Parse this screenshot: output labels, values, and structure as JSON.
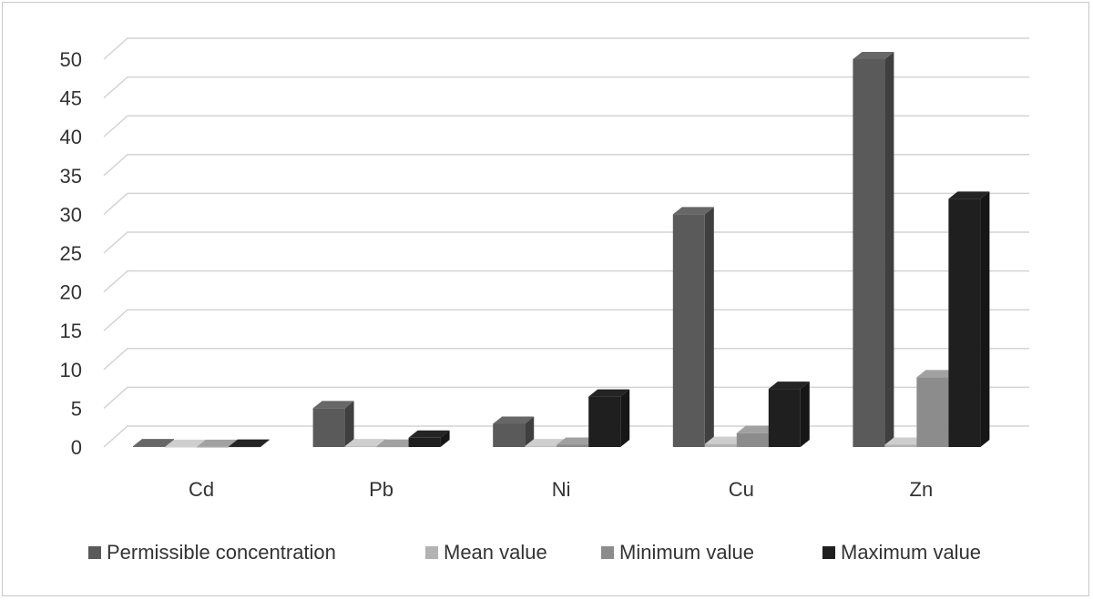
{
  "chart_data": {
    "type": "bar",
    "title": "",
    "xlabel": "",
    "ylabel": "",
    "categories": [
      "Cd",
      "Pb",
      "Ni",
      "Cu",
      "Zn"
    ],
    "series": [
      {
        "name": "Permissible concentration",
        "color": "#5a5a5a",
        "values": [
          0.1,
          5,
          3,
          30,
          50
        ]
      },
      {
        "name": "Mean value",
        "color": "#b3b3b3",
        "values": [
          0.02,
          0.1,
          0.1,
          0.4,
          0.3
        ]
      },
      {
        "name": "Minimum value",
        "color": "#8c8c8c",
        "values": [
          0.01,
          0.05,
          0.3,
          1.8,
          9
        ]
      },
      {
        "name": "Maximum value",
        "color": "#1f1f1f",
        "values": [
          0.05,
          1.2,
          6.5,
          7.5,
          32
        ]
      }
    ],
    "y_ticks": [
      0,
      5,
      10,
      15,
      20,
      25,
      30,
      35,
      40,
      45,
      50
    ],
    "ylim": [
      0,
      50
    ],
    "grid": true,
    "legend_position": "bottom",
    "style": "3d-clustered-column"
  }
}
